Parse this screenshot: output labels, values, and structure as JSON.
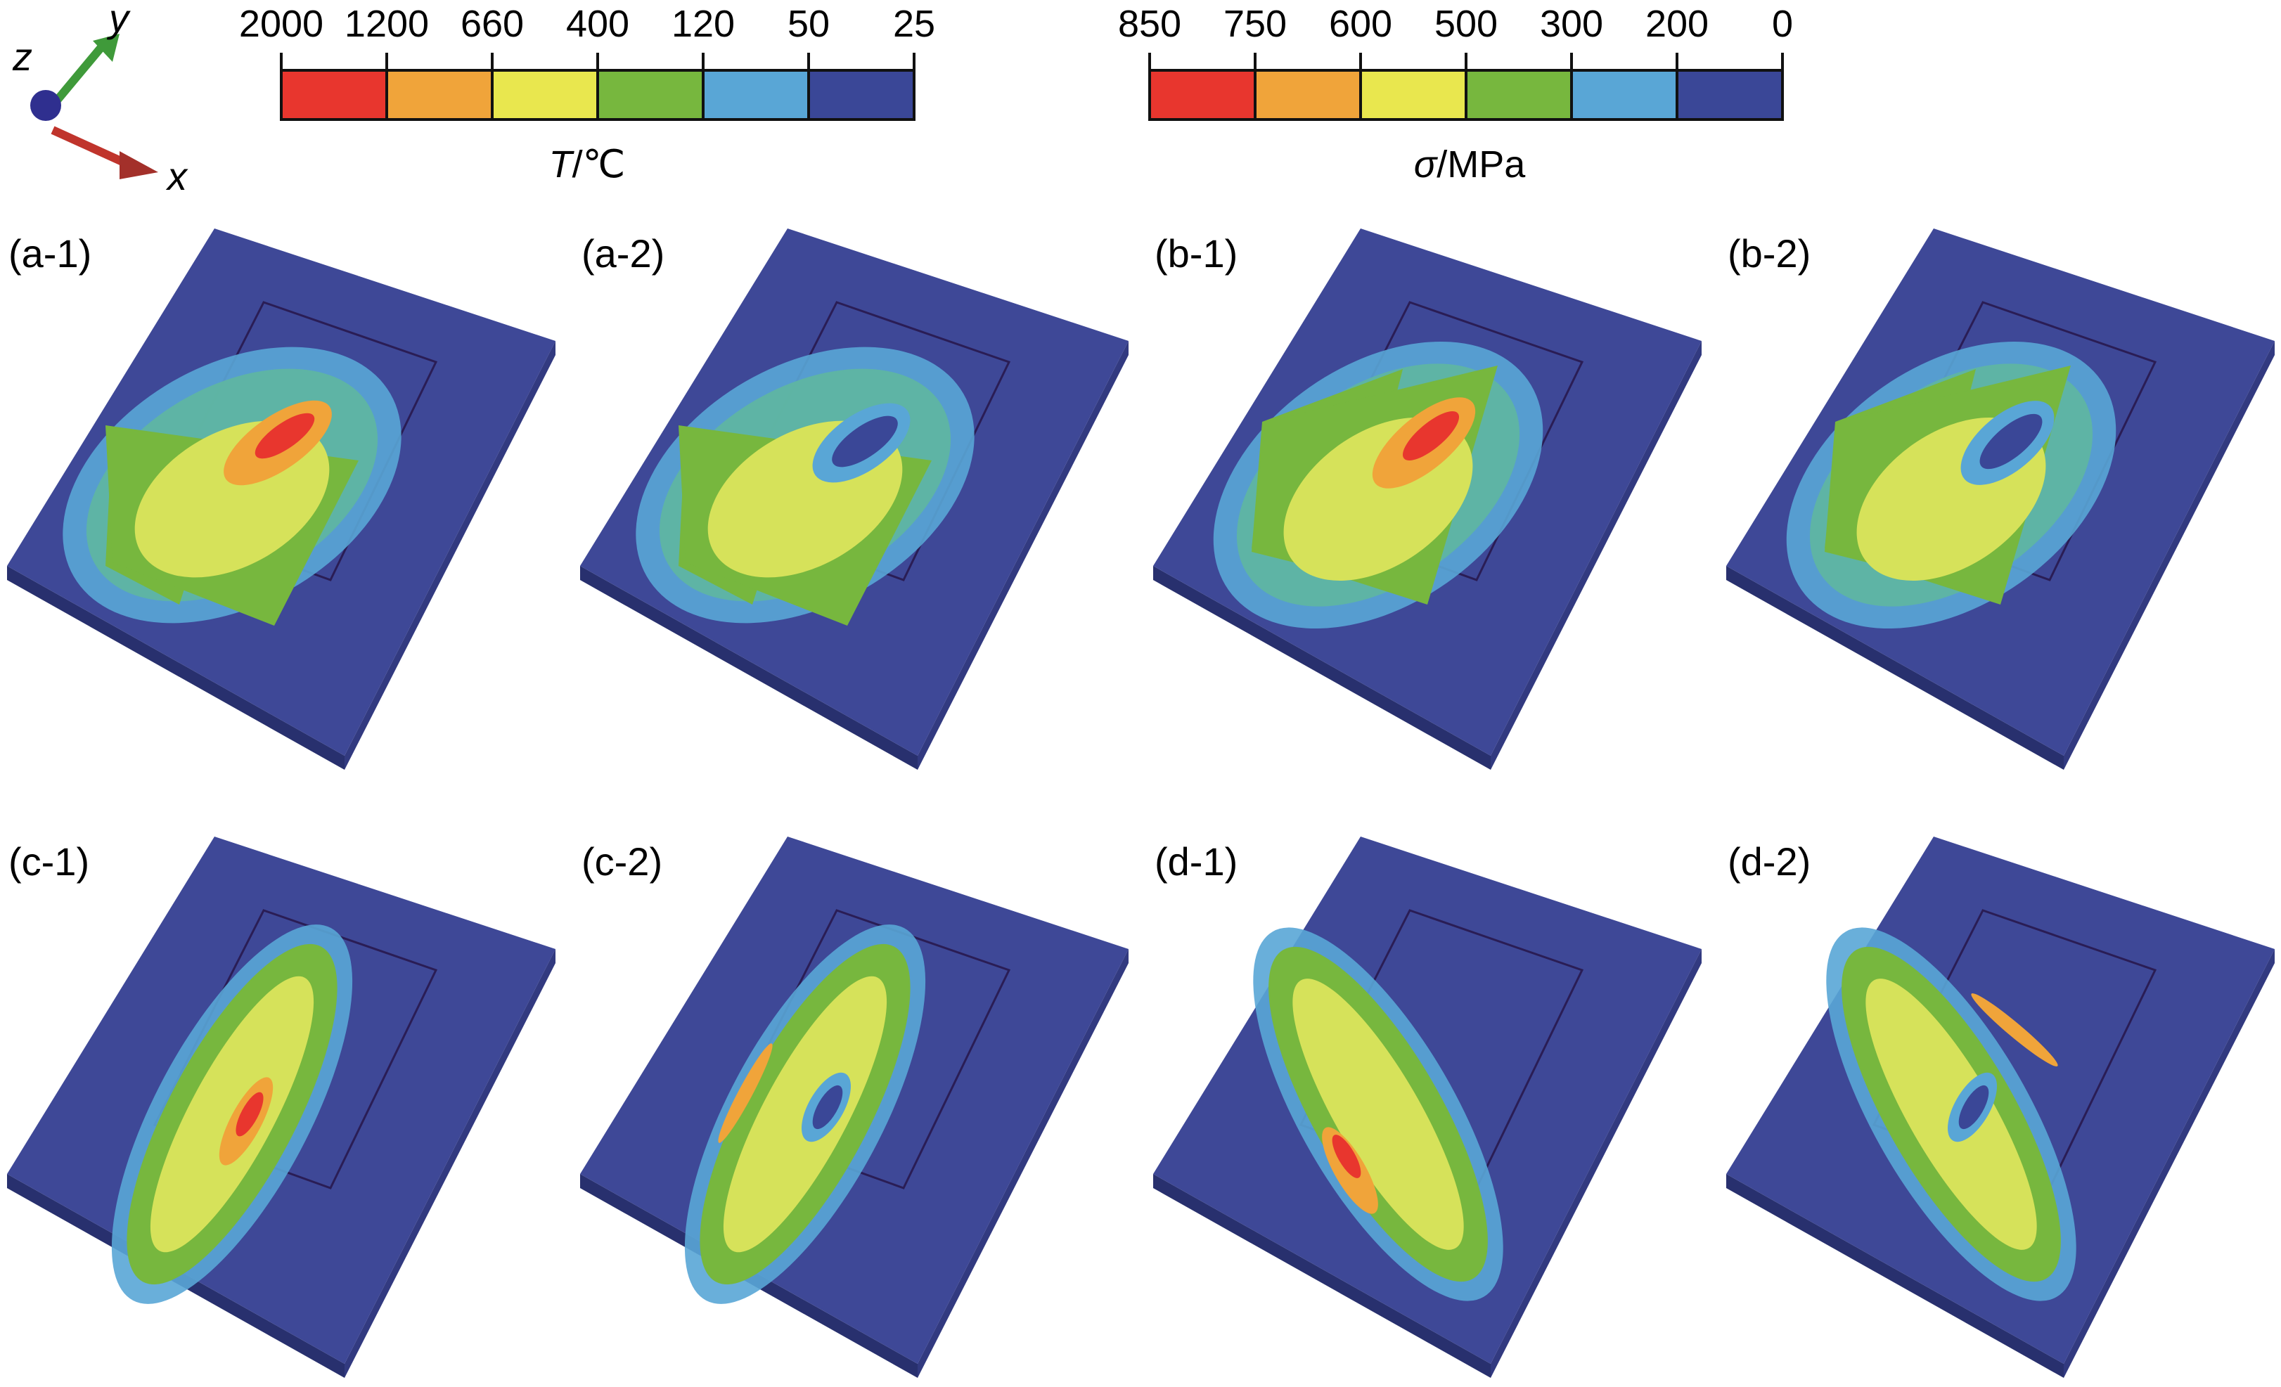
{
  "axes_triad": {
    "x": "x",
    "y": "y",
    "z": "z"
  },
  "legend_temperature": {
    "ticks": [
      "2000",
      "1200",
      "660",
      "400",
      "120",
      "50",
      "25"
    ],
    "unit_symbol": "T",
    "unit_rest": "/℃",
    "colors": [
      "#e8362e",
      "#f0a43a",
      "#e9e74e",
      "#77b73e",
      "#59a6d6",
      "#3a4797"
    ]
  },
  "legend_stress": {
    "ticks": [
      "850",
      "750",
      "600",
      "500",
      "300",
      "200",
      "0"
    ],
    "unit_symbol": "σ",
    "unit_rest": "/MPa",
    "colors": [
      "#e8362e",
      "#f0a43a",
      "#e9e74e",
      "#77b73e",
      "#59a6d6",
      "#3a4797"
    ]
  },
  "panels": [
    {
      "label": "(a-1)",
      "type": "temperature"
    },
    {
      "label": "(a-2)",
      "type": "stress"
    },
    {
      "label": "(b-1)",
      "type": "temperature"
    },
    {
      "label": "(b-2)",
      "type": "stress"
    },
    {
      "label": "(c-1)",
      "type": "temperature"
    },
    {
      "label": "(c-2)",
      "type": "stress"
    },
    {
      "label": "(d-1)",
      "type": "temperature"
    },
    {
      "label": "(d-2)",
      "type": "stress"
    }
  ]
}
